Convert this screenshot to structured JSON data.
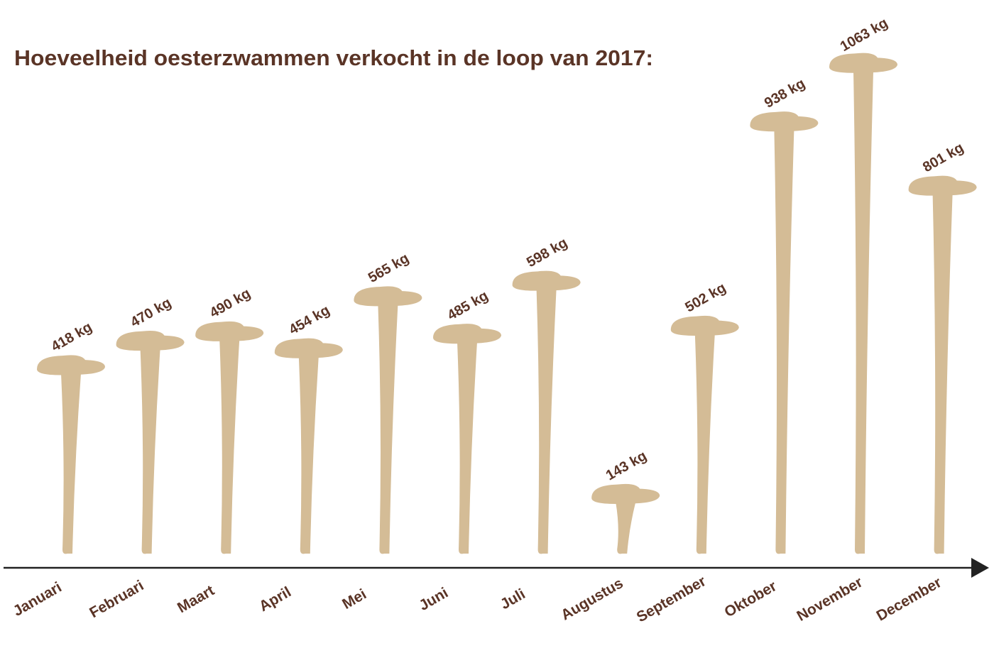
{
  "chart_data": {
    "type": "pictogram",
    "title": "Hoeveelheid oesterzwammen verkocht in de loop van 2017:",
    "categories": [
      "Januari",
      "Februari",
      "Maart",
      "April",
      "Mei",
      "Juni",
      "Juli",
      "Augustus",
      "September",
      "Oktober",
      "November",
      "December"
    ],
    "values": [
      418,
      470,
      490,
      454,
      565,
      485,
      598,
      143,
      502,
      938,
      1063,
      801
    ],
    "value_labels": [
      "418 kg",
      "470 kg",
      "490 kg",
      "454 kg",
      "565 kg",
      "485 kg",
      "598 kg",
      "143 kg",
      "502 kg",
      "938 kg",
      "1063 kg",
      "801 kg"
    ],
    "color": "#d4bc96"
  }
}
